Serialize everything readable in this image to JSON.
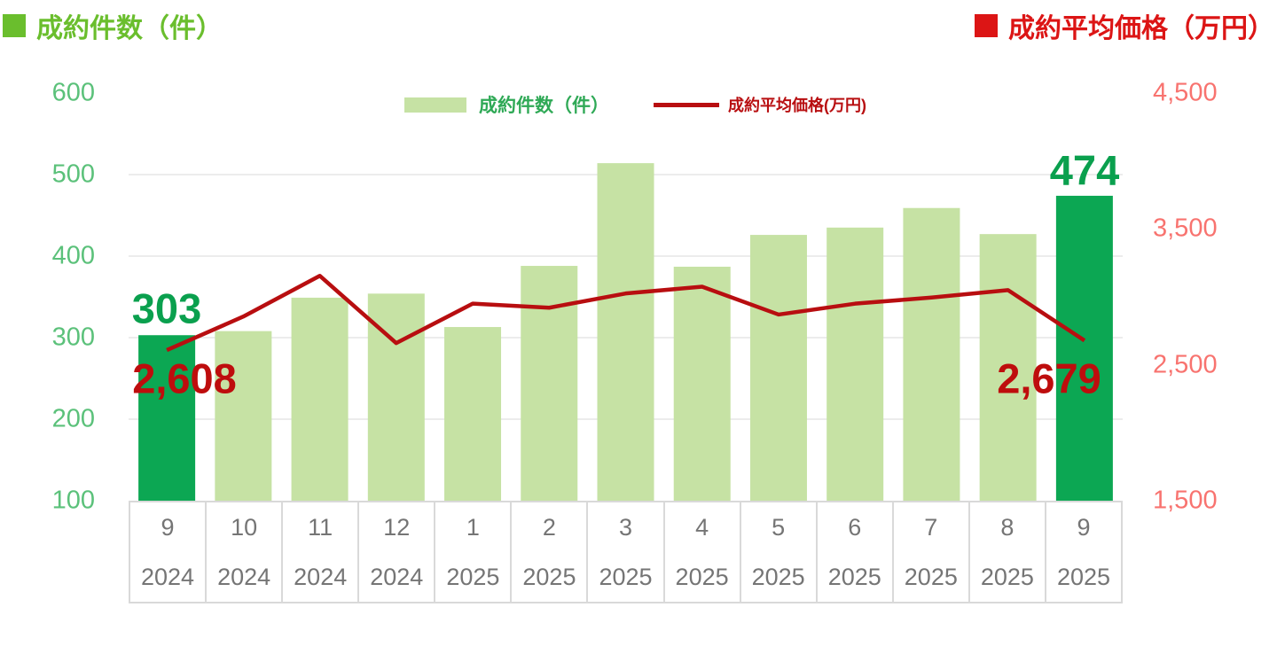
{
  "header": {
    "left_title": "成約件数（件）",
    "right_title": "成約平均価格（万円）"
  },
  "legend": {
    "bars_label": "成約件数（件）",
    "line_label": "成約平均価格(万円)"
  },
  "chart_data": {
    "type": "bar",
    "subtype": "bar-and-line-combo",
    "categories_month": [
      "9",
      "10",
      "11",
      "12",
      "1",
      "2",
      "3",
      "4",
      "5",
      "6",
      "7",
      "8",
      "9"
    ],
    "categories_year": [
      "2024",
      "2024",
      "2024",
      "2024",
      "2025",
      "2025",
      "2025",
      "2025",
      "2025",
      "2025",
      "2025",
      "2025",
      "2025"
    ],
    "series": [
      {
        "name": "成約件数（件）",
        "type": "bar",
        "axis": "left",
        "values": [
          303,
          308,
          349,
          354,
          313,
          388,
          514,
          387,
          426,
          435,
          459,
          427,
          474
        ],
        "highlight_indexes": [
          0,
          12
        ]
      },
      {
        "name": "成約平均価格(万円)",
        "type": "line",
        "axis": "right",
        "values": [
          2608,
          2855,
          3155,
          2660,
          2950,
          2920,
          3025,
          3075,
          2870,
          2950,
          2995,
          3050,
          2679
        ]
      }
    ],
    "left_axis": {
      "ticks": [
        "600",
        "500",
        "400",
        "300",
        "200",
        "100"
      ],
      "min": 100,
      "max": 600
    },
    "right_axis": {
      "ticks": [
        "4,500",
        "3,500",
        "2,500",
        "1,500"
      ],
      "min": 1500,
      "max": 4500
    },
    "data_labels": {
      "bar_first": "303",
      "bar_last": "474",
      "line_first": "2,608",
      "line_last": "2,679"
    },
    "grid": "horizontal-only",
    "legend_position": "top-center",
    "colors": {
      "bar_light": "#C6E2A4",
      "bar_highlight": "#0CA753",
      "line": "#B80E10",
      "title_green": "#6ABE2D",
      "title_red": "#DC1515",
      "legend_green_text": "#2FA956",
      "legend_red_text": "#B80E10",
      "axis_green": "#5BC17A",
      "axis_salmon": "#F8736F",
      "data_label_green": "#0AA04E",
      "data_label_red": "#BE0D0D",
      "x_label_gray": "#757575",
      "cell_border": "#D9D9D9",
      "gridline": "#E5E5E5"
    }
  }
}
